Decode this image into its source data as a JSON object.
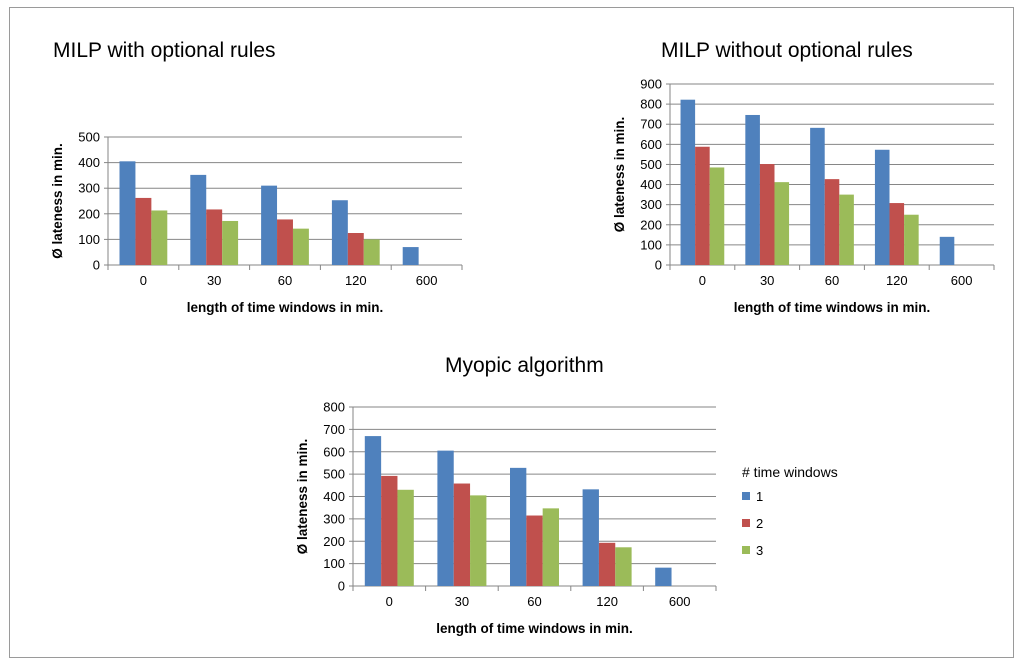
{
  "chart_data": [
    {
      "type": "bar",
      "title": "MILP with optional rules",
      "xlabel": "length of time windows in min.",
      "ylabel": "Ø  lateness in min.",
      "categories": [
        "0",
        "30",
        "60",
        "120",
        "600"
      ],
      "ylim": [
        0,
        500
      ],
      "yticks": [
        0,
        100,
        200,
        300,
        400,
        500
      ],
      "grid": true,
      "series": [
        {
          "name": "1",
          "values": [
            405,
            352,
            310,
            253,
            70
          ]
        },
        {
          "name": "2",
          "values": [
            262,
            217,
            178,
            125,
            null
          ]
        },
        {
          "name": "3",
          "values": [
            213,
            172,
            142,
            100,
            null
          ]
        }
      ]
    },
    {
      "type": "bar",
      "title": "MILP without optional rules",
      "xlabel": "length of time windows in min.",
      "ylabel": "Ø  lateness in min.",
      "categories": [
        "0",
        "30",
        "60",
        "120",
        "600"
      ],
      "ylim": [
        0,
        900
      ],
      "yticks": [
        0,
        100,
        200,
        300,
        400,
        500,
        600,
        700,
        800,
        900
      ],
      "grid": true,
      "series": [
        {
          "name": "1",
          "values": [
            822,
            746,
            682,
            573,
            140
          ]
        },
        {
          "name": "2",
          "values": [
            588,
            502,
            427,
            308,
            null
          ]
        },
        {
          "name": "3",
          "values": [
            485,
            412,
            350,
            250,
            null
          ]
        }
      ]
    },
    {
      "type": "bar",
      "title": "Myopic algorithm",
      "xlabel": "length of time windows in min.",
      "ylabel": "Ø  lateness in min.",
      "categories": [
        "0",
        "30",
        "60",
        "120",
        "600"
      ],
      "ylim": [
        0,
        800
      ],
      "yticks": [
        0,
        100,
        200,
        300,
        400,
        500,
        600,
        700,
        800
      ],
      "grid": true,
      "series": [
        {
          "name": "1",
          "values": [
            670,
            605,
            528,
            432,
            82
          ]
        },
        {
          "name": "2",
          "values": [
            492,
            458,
            315,
            193,
            null
          ]
        },
        {
          "name": "3",
          "values": [
            430,
            405,
            347,
            173,
            null
          ]
        }
      ]
    }
  ],
  "legend": {
    "title": "# time windows",
    "placement": "right of bottom chart",
    "items": [
      "1",
      "2",
      "3"
    ]
  },
  "colors": {
    "series": [
      "#4f81bd",
      "#c0504d",
      "#9bbb59"
    ],
    "grid": "#868686",
    "axis": "#868686"
  }
}
